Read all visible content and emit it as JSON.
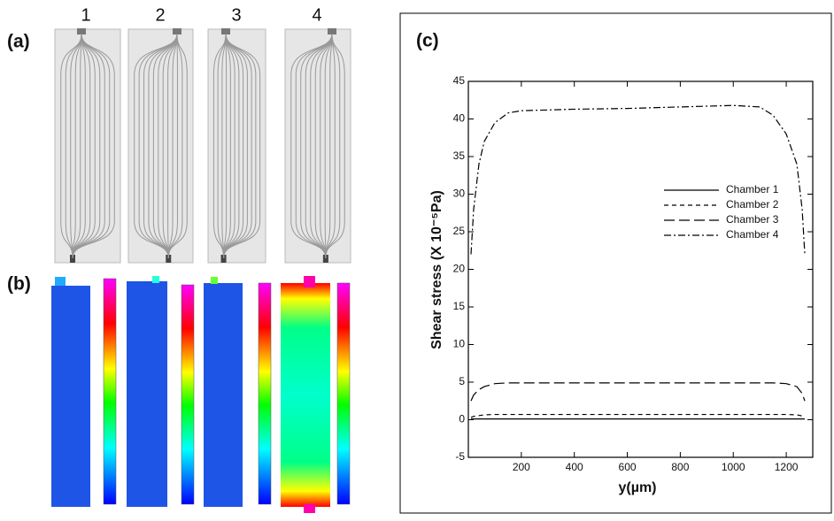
{
  "panels": {
    "a": "(a)",
    "b": "(b)",
    "c": "(c)",
    "columns": [
      "1",
      "2",
      "3",
      "4"
    ]
  },
  "chart_data": {
    "type": "line",
    "xlabel": "y(µm)",
    "ylabel": "Shear stress (X 10⁻⁵Pa)",
    "x": [
      10,
      20,
      40,
      60,
      100,
      150,
      200,
      300,
      400,
      600,
      800,
      1000,
      1100,
      1150,
      1200,
      1240,
      1260,
      1270
    ],
    "series": [
      {
        "name": "Chamber 1",
        "color": "#000000",
        "dash": "solid",
        "values": [
          0.1,
          0.1,
          0.1,
          0.1,
          0.1,
          0.1,
          0.1,
          0.1,
          0.1,
          0.1,
          0.1,
          0.1,
          0.1,
          0.1,
          0.1,
          0.1,
          0.1,
          0.1
        ]
      },
      {
        "name": "Chamber 2",
        "color": "#000000",
        "dash": "short",
        "values": [
          0.3,
          0.45,
          0.55,
          0.65,
          0.7,
          0.7,
          0.7,
          0.7,
          0.7,
          0.7,
          0.7,
          0.7,
          0.7,
          0.7,
          0.7,
          0.65,
          0.5,
          0.3
        ]
      },
      {
        "name": "Chamber 3",
        "color": "#000000",
        "dash": "long",
        "values": [
          2.5,
          3.3,
          4.0,
          4.4,
          4.8,
          4.9,
          4.9,
          4.9,
          4.9,
          4.9,
          4.9,
          4.9,
          4.9,
          4.9,
          4.8,
          4.4,
          3.5,
          2.5
        ]
      },
      {
        "name": "Chamber 4",
        "color": "#000000",
        "dash": "dashdot",
        "values": [
          22,
          28,
          34,
          37,
          39.5,
          40.8,
          41.1,
          41.2,
          41.3,
          41.4,
          41.6,
          41.8,
          41.6,
          40.5,
          38,
          34,
          28,
          22
        ]
      }
    ],
    "xlim": [
      0,
      1300
    ],
    "xticks": [
      200,
      400,
      600,
      800,
      1000,
      1200
    ],
    "ylim": [
      -5,
      45
    ],
    "yticks": [
      -5,
      0,
      5,
      10,
      15,
      20,
      25,
      30,
      35,
      40,
      45
    ]
  }
}
